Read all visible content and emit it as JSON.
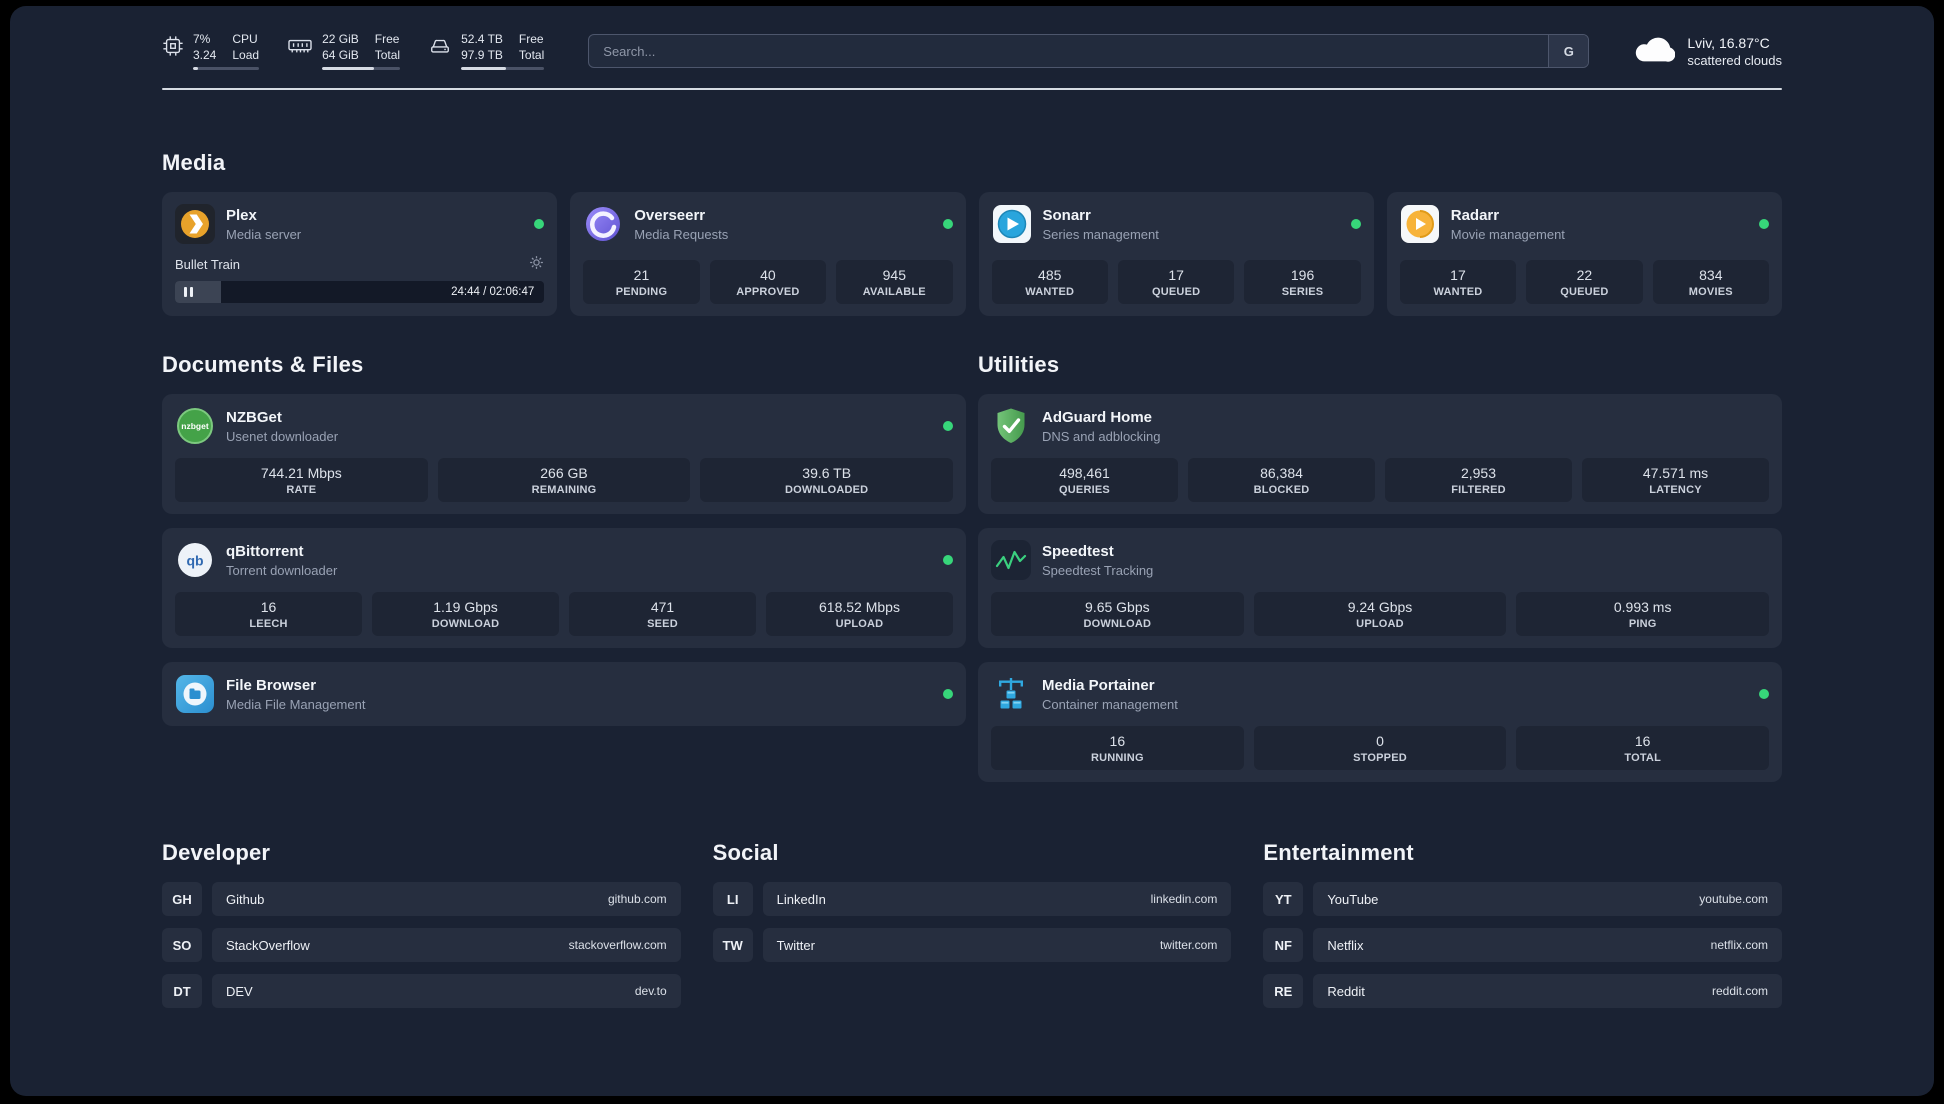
{
  "topbar": {
    "cpu": {
      "value_top": "7%",
      "value_bottom": "3.24",
      "label_top": "CPU",
      "label_bottom": "Load",
      "percent": 7
    },
    "ram": {
      "value_top": "22 GiB",
      "value_bottom": "64 GiB",
      "label_top": "Free",
      "label_bottom": "Total",
      "percent": 66
    },
    "disk": {
      "value_top": "52.4 TB",
      "value_bottom": "97.9 TB",
      "label_top": "Free",
      "label_bottom": "Total",
      "percent": 54
    },
    "search": {
      "placeholder": "Search...",
      "button": "G"
    },
    "weather": {
      "location": "Lviv, 16.87°C",
      "condition": "scattered clouds"
    }
  },
  "sections": {
    "media": {
      "title": "Media"
    },
    "documents": {
      "title": "Documents & Files"
    },
    "utilities": {
      "title": "Utilities"
    }
  },
  "apps": {
    "plex": {
      "name": "Plex",
      "subtitle": "Media server",
      "now_playing": "Bullet Train",
      "time": "24:44 / 02:06:47"
    },
    "overseerr": {
      "name": "Overseerr",
      "subtitle": "Media Requests",
      "stats": [
        {
          "value": "21",
          "label": "PENDING"
        },
        {
          "value": "40",
          "label": "APPROVED"
        },
        {
          "value": "945",
          "label": "AVAILABLE"
        }
      ]
    },
    "sonarr": {
      "name": "Sonarr",
      "subtitle": "Series management",
      "stats": [
        {
          "value": "485",
          "label": "WANTED"
        },
        {
          "value": "17",
          "label": "QUEUED"
        },
        {
          "value": "196",
          "label": "SERIES"
        }
      ]
    },
    "radarr": {
      "name": "Radarr",
      "subtitle": "Movie management",
      "stats": [
        {
          "value": "17",
          "label": "WANTED"
        },
        {
          "value": "22",
          "label": "QUEUED"
        },
        {
          "value": "834",
          "label": "MOVIES"
        }
      ]
    },
    "nzbget": {
      "name": "NZBGet",
      "subtitle": "Usenet downloader",
      "icon_text": "nzbget",
      "stats": [
        {
          "value": "744.21 Mbps",
          "label": "RATE"
        },
        {
          "value": "266 GB",
          "label": "REMAINING"
        },
        {
          "value": "39.6 TB",
          "label": "DOWNLOADED"
        }
      ]
    },
    "qbittorrent": {
      "name": "qBittorrent",
      "subtitle": "Torrent downloader",
      "icon_text": "qb",
      "stats": [
        {
          "value": "16",
          "label": "LEECH"
        },
        {
          "value": "1.19 Gbps",
          "label": "DOWNLOAD"
        },
        {
          "value": "471",
          "label": "SEED"
        },
        {
          "value": "618.52 Mbps",
          "label": "UPLOAD"
        }
      ]
    },
    "filebrowser": {
      "name": "File Browser",
      "subtitle": "Media File Management"
    },
    "adguard": {
      "name": "AdGuard Home",
      "subtitle": "DNS and adblocking",
      "stats": [
        {
          "value": "498,461",
          "label": "QUERIES"
        },
        {
          "value": "86,384",
          "label": "BLOCKED"
        },
        {
          "value": "2,953",
          "label": "FILTERED"
        },
        {
          "value": "47.571 ms",
          "label": "LATENCY"
        }
      ]
    },
    "speedtest": {
      "name": "Speedtest",
      "subtitle": "Speedtest Tracking",
      "stats": [
        {
          "value": "9.65 Gbps",
          "label": "DOWNLOAD"
        },
        {
          "value": "9.24 Gbps",
          "label": "UPLOAD"
        },
        {
          "value": "0.993 ms",
          "label": "PING"
        }
      ]
    },
    "portainer": {
      "name": "Media Portainer",
      "subtitle": "Container management",
      "stats": [
        {
          "value": "16",
          "label": "RUNNING"
        },
        {
          "value": "0",
          "label": "STOPPED"
        },
        {
          "value": "16",
          "label": "TOTAL"
        }
      ]
    }
  },
  "bookmarks": {
    "developer": {
      "title": "Developer",
      "items": [
        {
          "abbr": "GH",
          "name": "Github",
          "url": "github.com"
        },
        {
          "abbr": "SO",
          "name": "StackOverflow",
          "url": "stackoverflow.com"
        },
        {
          "abbr": "DT",
          "name": "DEV",
          "url": "dev.to"
        }
      ]
    },
    "social": {
      "title": "Social",
      "items": [
        {
          "abbr": "LI",
          "name": "LinkedIn",
          "url": "linkedin.com"
        },
        {
          "abbr": "TW",
          "name": "Twitter",
          "url": "twitter.com"
        }
      ]
    },
    "entertainment": {
      "title": "Entertainment",
      "items": [
        {
          "abbr": "YT",
          "name": "YouTube",
          "url": "youtube.com"
        },
        {
          "abbr": "NF",
          "name": "Netflix",
          "url": "netflix.com"
        },
        {
          "abbr": "RE",
          "name": "Reddit",
          "url": "reddit.com"
        }
      ]
    }
  },
  "colors": {
    "status_online": "#37d67a",
    "panel_background": "#1a2233",
    "card_background": "#262e3f",
    "accent_plex": "#e8a22a",
    "accent_speedtest_line": "#3ad07f",
    "accent_portainer": "#2fa8e0"
  }
}
